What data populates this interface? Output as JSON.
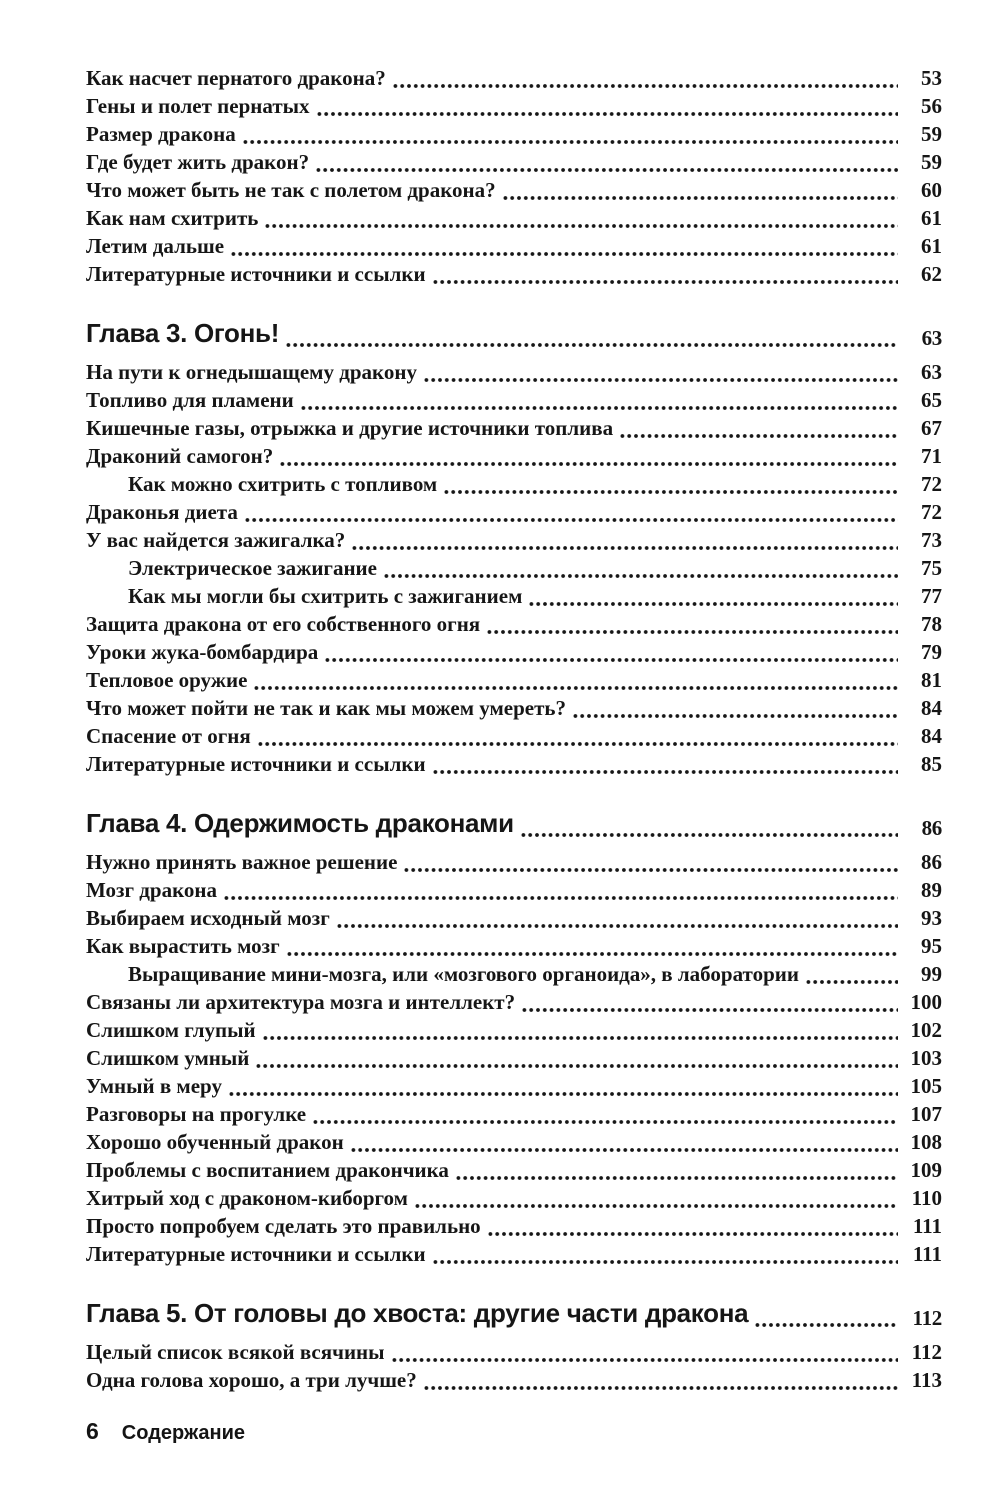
{
  "colors": {
    "ink": "#161616",
    "paper": "#ffffff"
  },
  "footer": {
    "page_number": "6",
    "label": "Содержание"
  },
  "toc": {
    "sections": [
      {
        "entries": [
          {
            "title": "Как насчет пернатого дракона?",
            "page": "53",
            "indent": false
          },
          {
            "title": "Гены и полет пернатых",
            "page": "56",
            "indent": false
          },
          {
            "title": "Размер дракона",
            "page": "59",
            "indent": false
          },
          {
            "title": "Где будет жить дракон?",
            "page": "59",
            "indent": false
          },
          {
            "title": "Что может быть не так с полетом дракона?",
            "page": "60",
            "indent": false
          },
          {
            "title": "Как нам схитрить",
            "page": "61",
            "indent": false
          },
          {
            "title": "Летим дальше",
            "page": "61",
            "indent": false
          },
          {
            "title": "Литературные источники и ссылки",
            "page": "62",
            "indent": false
          }
        ]
      },
      {
        "heading": {
          "title": "Глава 3. Огонь!",
          "page": "63"
        },
        "entries": [
          {
            "title": "На пути к огнедышащему дракону",
            "page": "63",
            "indent": false
          },
          {
            "title": "Топливо для пламени",
            "page": "65",
            "indent": false
          },
          {
            "title": "Кишечные газы, отрыжка и другие источники топлива",
            "page": "67",
            "indent": false
          },
          {
            "title": "Драконий самогон?",
            "page": "71",
            "indent": false
          },
          {
            "title": "Как можно схитрить с топливом",
            "page": "72",
            "indent": true
          },
          {
            "title": "Драконья диета",
            "page": "72",
            "indent": false
          },
          {
            "title": "У вас найдется зажигалка?",
            "page": "73",
            "indent": false
          },
          {
            "title": "Электрическое зажигание",
            "page": "75",
            "indent": true
          },
          {
            "title": "Как мы могли бы схитрить с зажиганием",
            "page": "77",
            "indent": true
          },
          {
            "title": "Защита дракона от его собственного огня",
            "page": "78",
            "indent": false
          },
          {
            "title": "Уроки жука-бомбардира",
            "page": "79",
            "indent": false
          },
          {
            "title": "Тепловое оружие",
            "page": "81",
            "indent": false
          },
          {
            "title": "Что может пойти не так и как мы можем умереть?",
            "page": "84",
            "indent": false
          },
          {
            "title": "Спасение от огня",
            "page": "84",
            "indent": false
          },
          {
            "title": "Литературные источники и ссылки",
            "page": "85",
            "indent": false
          }
        ]
      },
      {
        "heading": {
          "title": "Глава 4. Одержимость драконами",
          "page": "86"
        },
        "entries": [
          {
            "title": "Нужно принять важное решение",
            "page": "86",
            "indent": false
          },
          {
            "title": "Мозг дракона",
            "page": "89",
            "indent": false
          },
          {
            "title": "Выбираем исходный мозг",
            "page": "93",
            "indent": false
          },
          {
            "title": "Как вырастить мозг",
            "page": "95",
            "indent": false
          },
          {
            "title": "Выращивание мини-мозга, или «мозгового органоида», в лаборатории",
            "page": "99",
            "indent": true
          },
          {
            "title": "Связаны ли архитектура мозга и интеллект?",
            "page": "100",
            "indent": false
          },
          {
            "title": "Слишком глупый",
            "page": "102",
            "indent": false
          },
          {
            "title": "Слишком умный",
            "page": "103",
            "indent": false
          },
          {
            "title": "Умный в меру",
            "page": "105",
            "indent": false
          },
          {
            "title": "Разговоры на прогулке",
            "page": "107",
            "indent": false
          },
          {
            "title": "Хорошо обученный дракон",
            "page": "108",
            "indent": false
          },
          {
            "title": "Проблемы с воспитанием дракончика",
            "page": "109",
            "indent": false
          },
          {
            "title": "Хитрый ход с драконом-киборгом",
            "page": "110",
            "indent": false
          },
          {
            "title": "Просто попробуем сделать это правильно",
            "page": "111",
            "indent": false
          },
          {
            "title": "Литературные источники и ссылки",
            "page": "111",
            "indent": false
          }
        ]
      },
      {
        "heading": {
          "title": "Глава 5. От головы до хвоста: другие части дракона",
          "page": "112"
        },
        "entries": [
          {
            "title": "Целый список всякой всячины",
            "page": "112",
            "indent": false
          },
          {
            "title": "Одна голова хорошо, а три лучше?",
            "page": "113",
            "indent": false
          }
        ]
      }
    ]
  }
}
